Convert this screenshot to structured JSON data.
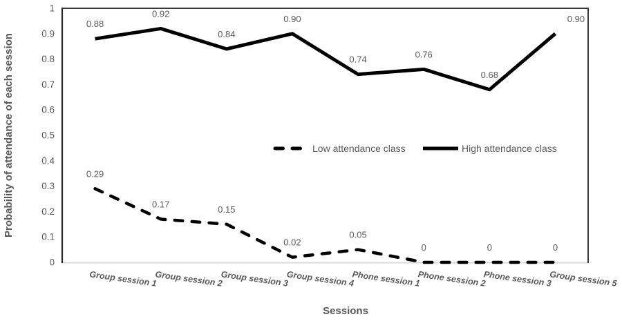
{
  "figure": {
    "background": "#ffffff"
  },
  "chart_data": {
    "type": "line",
    "title": "",
    "xlabel": "Sessions",
    "ylabel": "Probability of attendance of each session",
    "categories": [
      "Group session 1",
      "Group session 2",
      "Group session 3",
      "Group session 4",
      "Phone session 1",
      "Phone session 2",
      "Phone session 3",
      "Group session 5"
    ],
    "series": [
      {
        "name": "Low attendance class",
        "line_style": "dashed",
        "color": "#000000",
        "values": [
          0.29,
          0.17,
          0.15,
          0.02,
          0.05,
          0,
          0,
          0
        ],
        "labels": [
          "0.29",
          "0.17",
          "0.15",
          "0.02",
          "0.05",
          "0",
          "0",
          "0"
        ]
      },
      {
        "name": "High attendance class",
        "line_style": "solid",
        "color": "#000000",
        "values": [
          0.88,
          0.92,
          0.84,
          0.9,
          0.74,
          0.76,
          0.68,
          0.9
        ],
        "labels": [
          "0.88",
          "0.92",
          "0.84",
          "0.90",
          "0.74",
          "0.76",
          "0.68",
          "0.90"
        ]
      }
    ],
    "ylim": [
      0,
      1
    ],
    "yticks": [
      "0",
      "0.1",
      "0.2",
      "0.3",
      "0.4",
      "0.5",
      "0.6",
      "0.7",
      "0.8",
      "0.9",
      "1"
    ],
    "grid": false,
    "legend": {
      "position": "inside-middle-right"
    },
    "colors": {
      "series_line": "#000000",
      "tick_text": "#595959",
      "data_label_text": "#595959",
      "axis_title_text": "#595959",
      "plot_border": "#333333",
      "x_axis_line": "#d9d9d9"
    }
  }
}
